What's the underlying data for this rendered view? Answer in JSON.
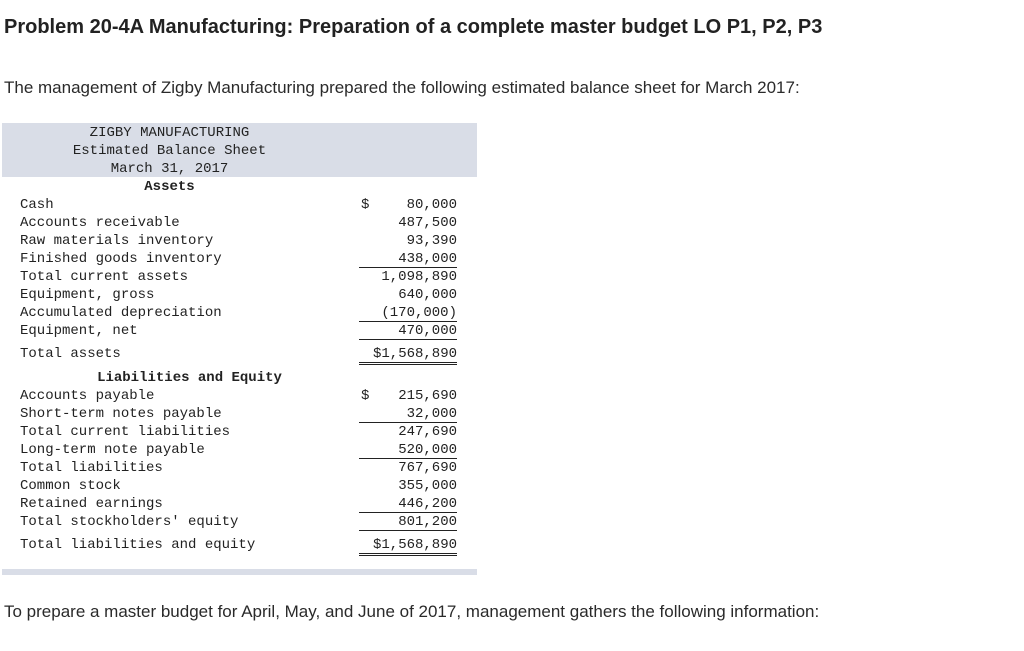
{
  "heading": "Problem 20-4A Manufacturing: Preparation of a complete master budget LO P1, P2, P3",
  "intro": "The management of Zigby Manufacturing prepared the following estimated balance sheet for March 2017:",
  "sheet": {
    "company": "ZIGBY MANUFACTURING",
    "statement": "Estimated Balance Sheet",
    "date": "March 31, 2017",
    "assets_title": "Assets",
    "liabilities_title": "Liabilities and Equity",
    "assets": [
      {
        "label": "Cash",
        "currency": "$",
        "value": "80,000"
      },
      {
        "label": "Accounts receivable",
        "currency": "",
        "value": "487,500"
      },
      {
        "label": "Raw materials inventory",
        "currency": "",
        "value": "93,390"
      },
      {
        "label": "Finished goods inventory",
        "currency": "",
        "value": "438,000"
      },
      {
        "label": "Total current assets",
        "currency": "",
        "value": "1,098,890"
      },
      {
        "label": "Equipment, gross",
        "currency": "",
        "value": "640,000"
      },
      {
        "label": "Accumulated depreciation",
        "currency": "",
        "value": "(170,000)"
      },
      {
        "label": "Equipment, net",
        "currency": "",
        "value": "470,000"
      },
      {
        "label": "Total assets",
        "currency": "",
        "value": "$1,568,890"
      }
    ],
    "liabilities": [
      {
        "label": "Accounts payable",
        "currency": "$",
        "value": "215,690"
      },
      {
        "label": "Short-term notes payable",
        "currency": "",
        "value": "32,000"
      },
      {
        "label": "Total current liabilities",
        "currency": "",
        "value": "247,690"
      },
      {
        "label": "Long-term note payable",
        "currency": "",
        "value": "520,000"
      },
      {
        "label": "Total liabilities",
        "currency": "",
        "value": "767,690"
      },
      {
        "label": "Common stock",
        "currency": "",
        "value": "355,000"
      },
      {
        "label": "Retained earnings",
        "currency": "",
        "value": "446,200"
      },
      {
        "label": "Total stockholders' equity",
        "currency": "",
        "value": "801,200"
      },
      {
        "label": "Total liabilities and equity",
        "currency": "",
        "value": "$1,568,890"
      }
    ]
  },
  "outro": "To prepare a master budget for April, May, and June of 2017, management gathers the following information:"
}
